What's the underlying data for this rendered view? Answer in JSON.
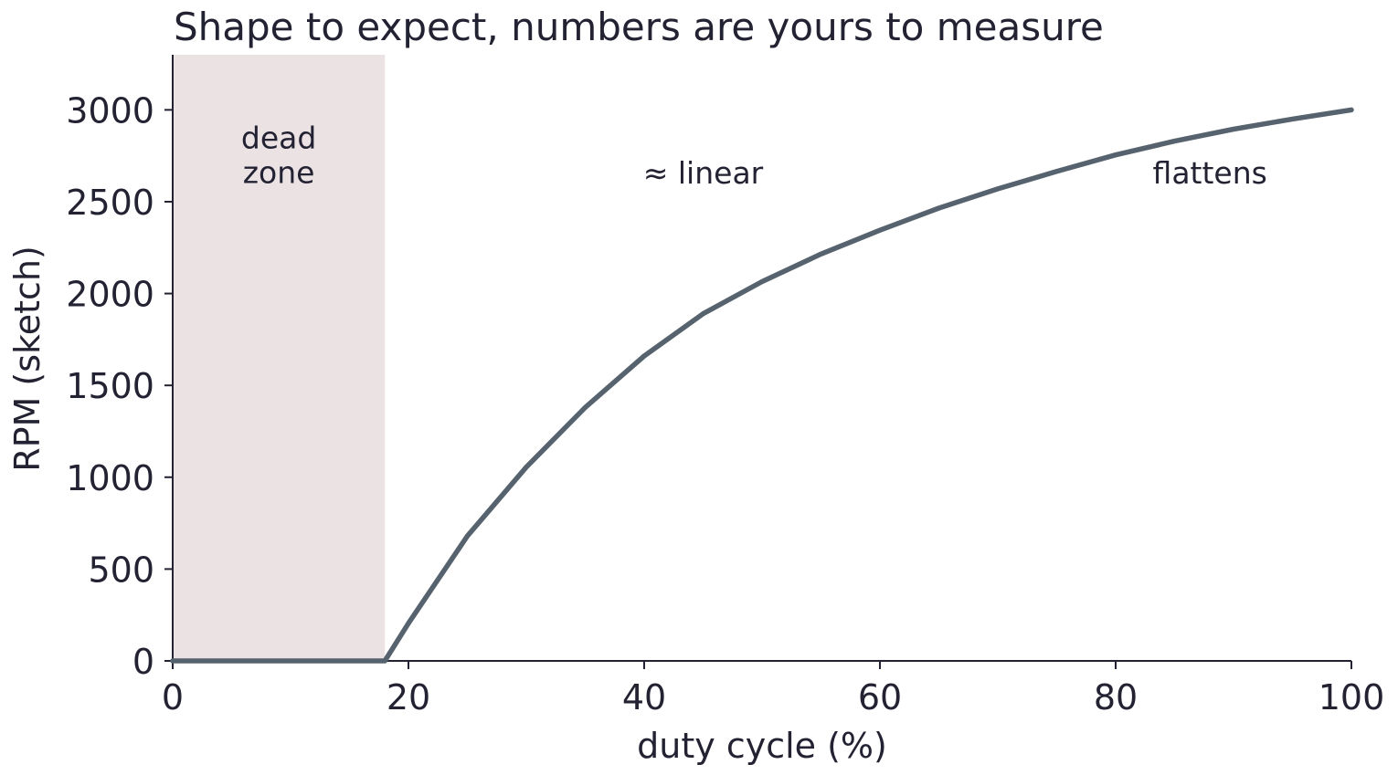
{
  "chart_data": {
    "type": "line",
    "title": "Shape to expect, numbers are yours to measure",
    "xlabel": "duty cycle (%)",
    "ylabel": "RPM (sketch)",
    "xlim": [
      0,
      100
    ],
    "ylim": [
      0,
      3300
    ],
    "grid": false,
    "legend": "none",
    "x_ticks": [
      "0",
      "20",
      "40",
      "60",
      "80",
      "100"
    ],
    "y_ticks": [
      "0",
      "500",
      "1000",
      "1500",
      "2000",
      "2500",
      "3000"
    ],
    "series": [
      {
        "x": [
          0,
          5,
          10,
          15,
          18,
          20,
          25,
          30,
          35,
          40,
          45,
          50,
          55,
          60,
          65,
          70,
          75,
          80,
          85,
          90,
          95,
          100
        ],
        "values": [
          0,
          0,
          0,
          0,
          0,
          205,
          680,
          1055,
          1380,
          1660,
          1890,
          2065,
          2215,
          2345,
          2465,
          2570,
          2665,
          2755,
          2830,
          2895,
          2950,
          3000
        ],
        "color": "#56636e"
      }
    ],
    "shaded_region": {
      "x_range": [
        0,
        18
      ],
      "color": "#ebe2e4"
    },
    "annotations": [
      {
        "lines": [
          "dead",
          "zone"
        ],
        "x": 9,
        "y": 2790
      },
      {
        "lines": [
          "≈ linear"
        ],
        "x": 45,
        "y": 2600
      },
      {
        "lines": [
          "flattens"
        ],
        "x": 88,
        "y": 2600
      }
    ]
  }
}
